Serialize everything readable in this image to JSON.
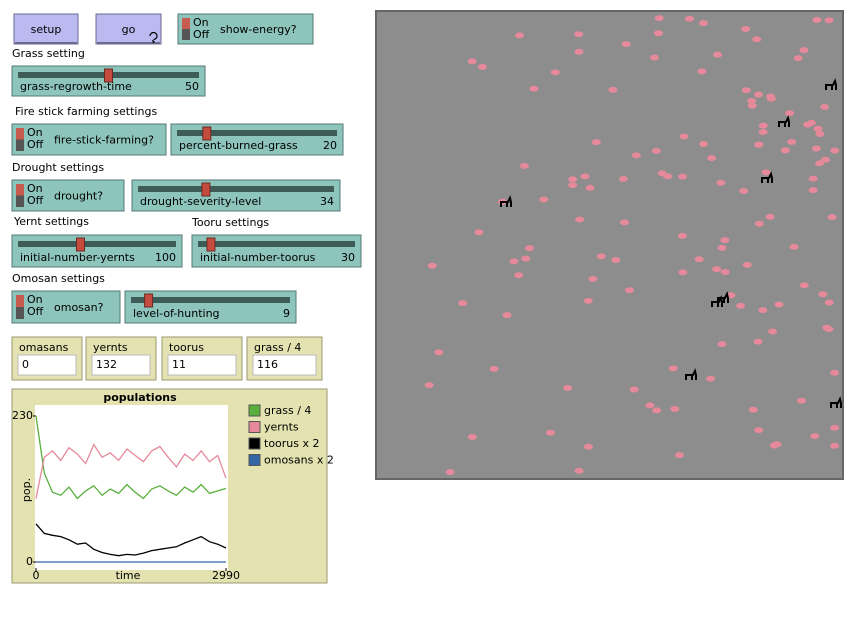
{
  "buttons": [
    {
      "label": "setup"
    },
    {
      "label": "go"
    }
  ],
  "switches": [
    {
      "name": "show-energy?",
      "on": "On",
      "off": "Off"
    },
    {
      "name": "fire-stick-farming?",
      "on": "On",
      "off": "Off"
    },
    {
      "name": "drought?",
      "on": "On",
      "off": "Off"
    },
    {
      "name": "omosan?",
      "on": "On",
      "off": "Off"
    }
  ],
  "section_labels": [
    "Grass setting",
    "Fire stick farming settings",
    "Drought settings",
    "Yernt settings",
    "Tooru settings",
    "Omosan settings"
  ],
  "sliders": [
    {
      "name": "grass-regrowth-time",
      "value": 50
    },
    {
      "name": "percent-burned-grass",
      "value": 20
    },
    {
      "name": "drought-severity-level",
      "value": 34
    },
    {
      "name": "initial-number-yernts",
      "value": 100
    },
    {
      "name": "initial-number-toorus",
      "value": 30
    },
    {
      "name": "level-of-hunting",
      "value": 9
    }
  ],
  "monitors": [
    {
      "label": "omasans",
      "value": 0
    },
    {
      "label": "yernts",
      "value": 132
    },
    {
      "label": "toorus",
      "value": 11
    },
    {
      "label": "grass / 4",
      "value": 116
    }
  ],
  "chart_data": {
    "type": "line",
    "title": "populations",
    "x_label": "time",
    "y_label": "pop.",
    "xlim": [
      0,
      2990
    ],
    "ylim": [
      0,
      230
    ],
    "xticks": [
      0,
      2990
    ],
    "yticks": [
      0,
      230
    ],
    "x": [
      0,
      130,
      260,
      390,
      520,
      650,
      780,
      910,
      1040,
      1170,
      1300,
      1430,
      1560,
      1690,
      1820,
      1950,
      2080,
      2210,
      2340,
      2470,
      2600,
      2730,
      2860,
      2990
    ],
    "series": [
      {
        "name": "grass / 4",
        "color": "#59b03c",
        "values": [
          230,
          140,
          110,
          105,
          118,
          100,
          112,
          120,
          105,
          115,
          108,
          122,
          110,
          100,
          115,
          120,
          112,
          105,
          118,
          110,
          122,
          108,
          112,
          116
        ]
      },
      {
        "name": "yernts",
        "color": "#e6899a",
        "values": [
          100,
          165,
          175,
          160,
          180,
          170,
          155,
          185,
          165,
          172,
          160,
          178,
          168,
          158,
          175,
          182,
          165,
          150,
          170,
          160,
          175,
          158,
          168,
          132
        ]
      },
      {
        "name": "toorus x 2",
        "color": "#000000",
        "values": [
          60,
          45,
          42,
          40,
          35,
          28,
          30,
          20,
          15,
          12,
          10,
          12,
          11,
          14,
          18,
          20,
          22,
          24,
          30,
          35,
          40,
          32,
          28,
          22
        ]
      },
      {
        "name": "omosans x 2",
        "color": "#3465a4",
        "values": [
          0,
          0,
          0,
          0,
          0,
          0,
          0,
          0,
          0,
          0,
          0,
          0,
          0,
          0,
          0,
          0,
          0,
          0,
          0,
          0,
          0,
          0,
          0,
          0
        ]
      }
    ]
  }
}
